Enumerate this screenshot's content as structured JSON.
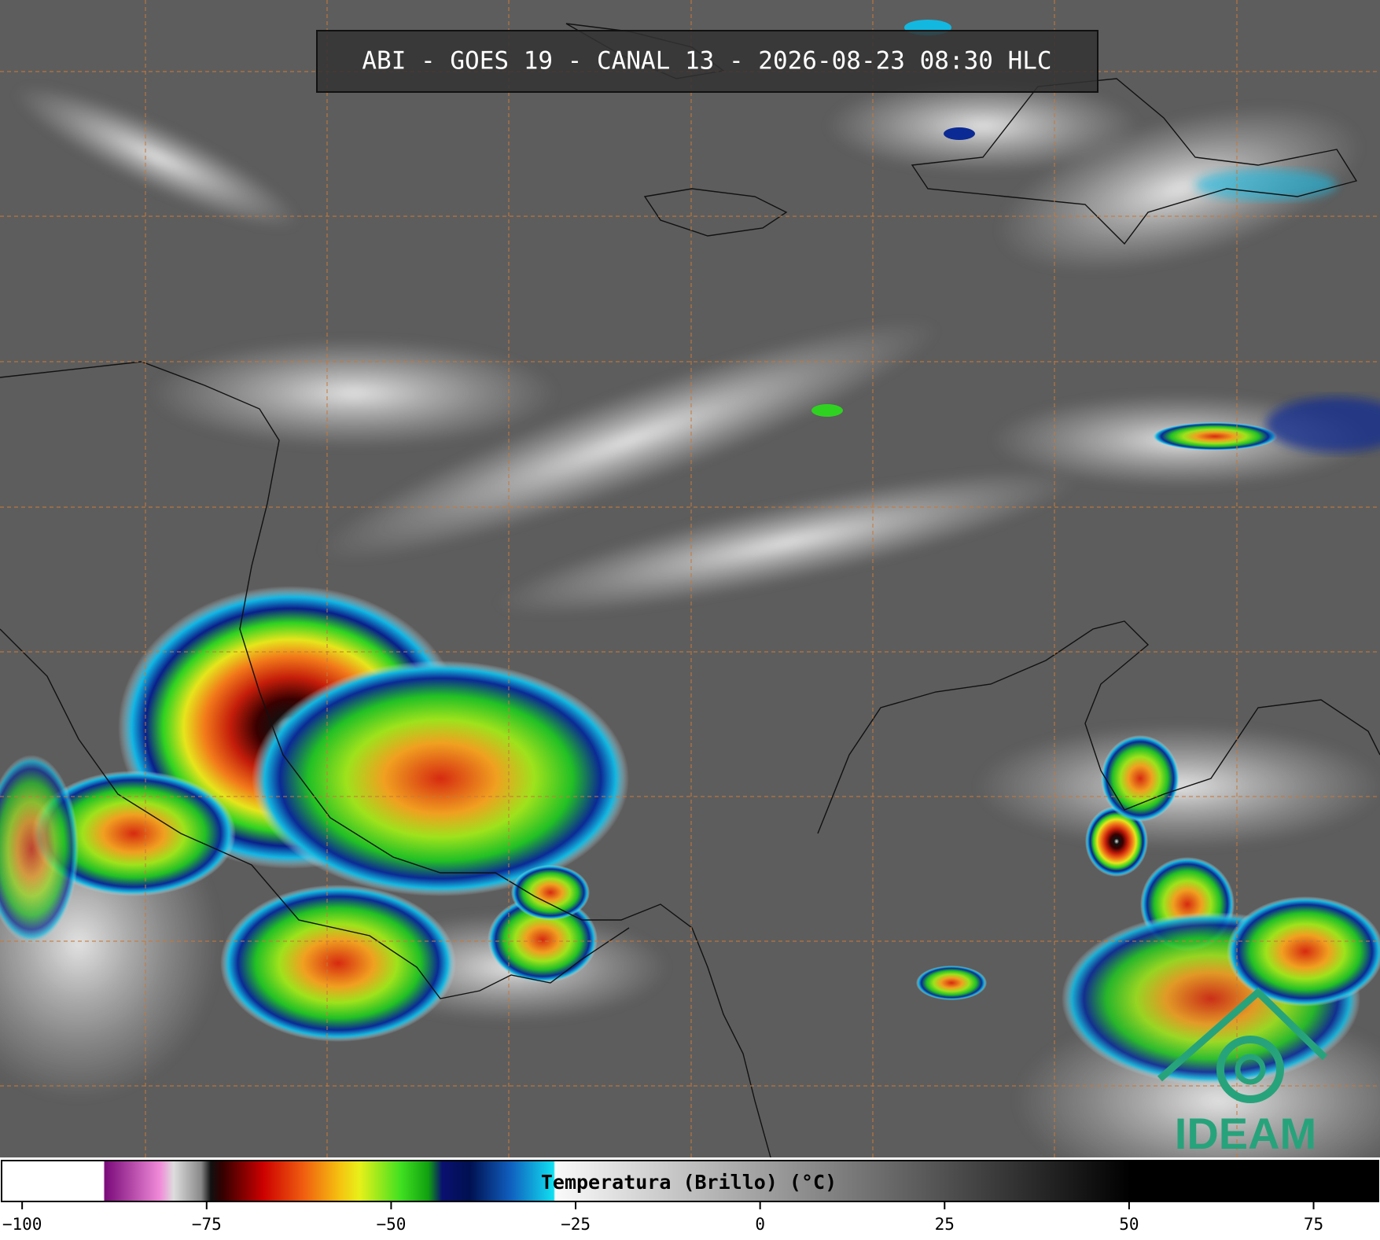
{
  "header": {
    "title": "ABI - GOES 19 - CANAL 13 - 2026-08-23 08:30 HLC"
  },
  "colorbar": {
    "label": "Temperatura (Brillo) (°C)",
    "xlim": [
      -103,
      84
    ],
    "xticks": [
      {
        "value": -100,
        "label": "−100"
      },
      {
        "value": -75,
        "label": "−75"
      },
      {
        "value": -50,
        "label": "−50"
      },
      {
        "value": -25,
        "label": "−25"
      },
      0,
      25,
      50,
      75
    ]
  },
  "logo": {
    "text": "IDEAM"
  }
}
